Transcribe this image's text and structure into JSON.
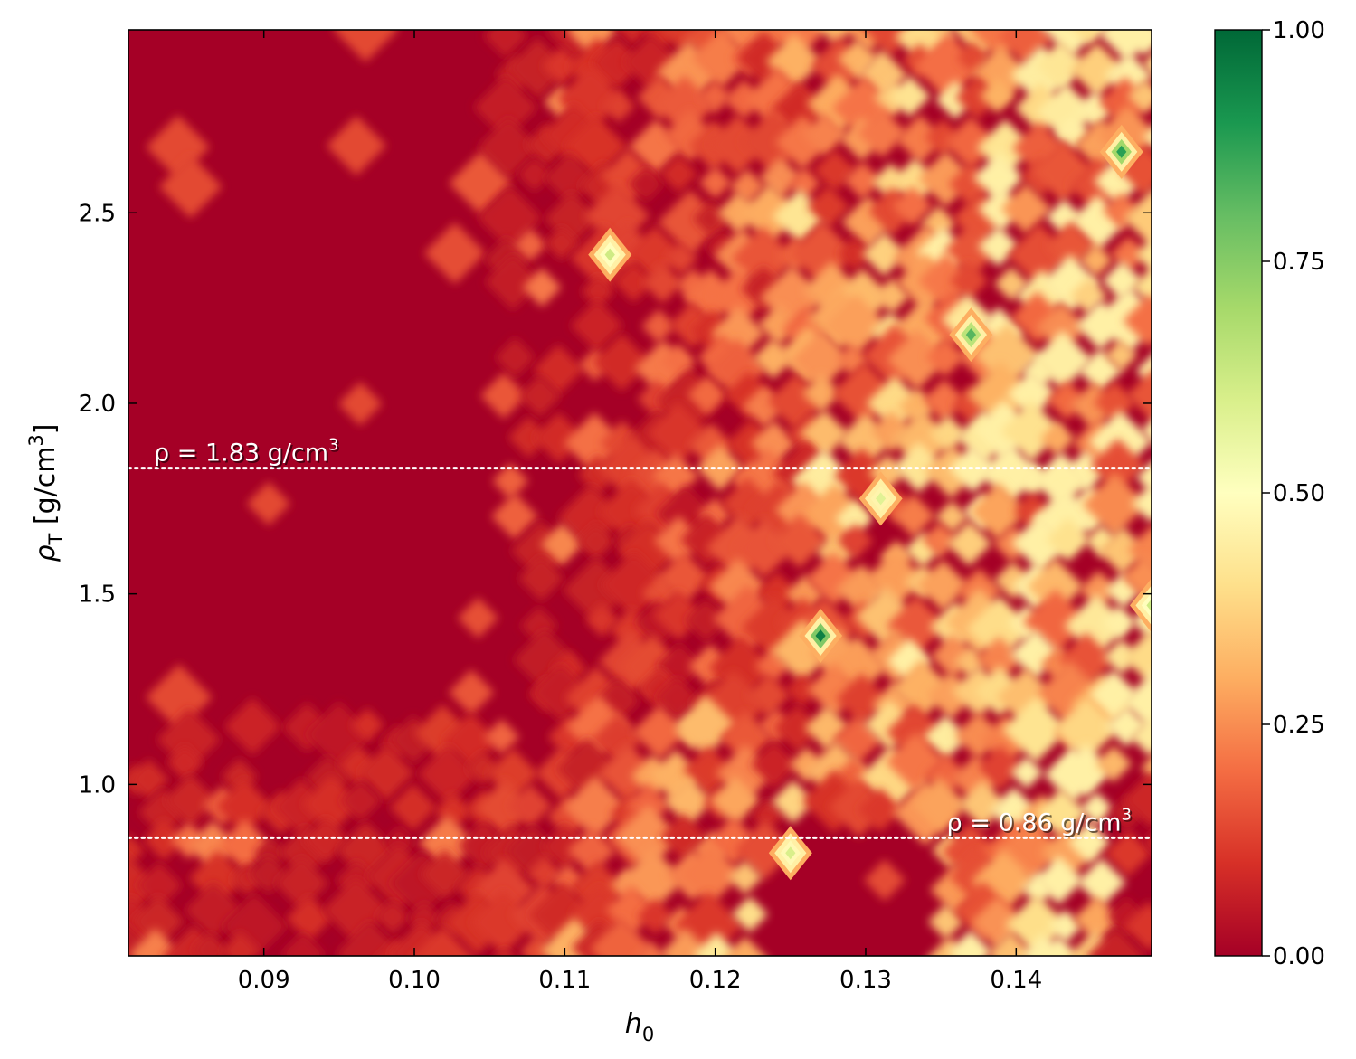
{
  "chart_data": {
    "type": "heatmap",
    "colormap": "RdYlGn",
    "xlabel": "h",
    "xlabel_sub": "0",
    "ylabel": "ρ",
    "ylabel_sub": "T",
    "ylabel_unit": " [g/cm",
    "ylabel_unit_sup": "3",
    "ylabel_unit_close": "]",
    "xlim": [
      0.081,
      0.149
    ],
    "ylim": [
      0.55,
      2.98
    ],
    "x_ticks": [
      0.09,
      0.1,
      0.11,
      0.12,
      0.13,
      0.14
    ],
    "x_tick_labels": [
      "0.09",
      "0.10",
      "0.11",
      "0.12",
      "0.13",
      "0.14"
    ],
    "y_ticks": [
      1.0,
      1.5,
      2.0,
      2.5
    ],
    "y_tick_labels": [
      "1.0",
      "1.5",
      "2.0",
      "2.5"
    ],
    "colorbar": {
      "range": [
        0.0,
        1.0
      ],
      "ticks": [
        0.0,
        0.25,
        0.5,
        0.75,
        1.0
      ],
      "tick_labels": [
        "0.00",
        "0.25",
        "0.50",
        "0.75",
        "1.00"
      ]
    },
    "reference_lines": [
      {
        "y": 1.83,
        "label_prefix": "ρ = 1.83 g/cm",
        "label_sup": "3",
        "style": "dotted",
        "color": "#ffffff"
      },
      {
        "y": 0.86,
        "label_prefix": "ρ = 0.86 g/cm",
        "label_sup": "3",
        "style": "dotted",
        "color": "#ffffff"
      }
    ],
    "hotspots": [
      {
        "x": 0.147,
        "y": 2.66,
        "value": 0.88
      },
      {
        "x": 0.127,
        "y": 1.39,
        "value": 0.95
      },
      {
        "x": 0.137,
        "y": 2.18,
        "value": 0.82
      },
      {
        "x": 0.113,
        "y": 2.39,
        "value": 0.62
      },
      {
        "x": 0.131,
        "y": 1.75,
        "value": 0.58
      },
      {
        "x": 0.125,
        "y": 0.82,
        "value": 0.6
      },
      {
        "x": 0.149,
        "y": 1.47,
        "value": 0.62
      }
    ],
    "grid": false
  }
}
